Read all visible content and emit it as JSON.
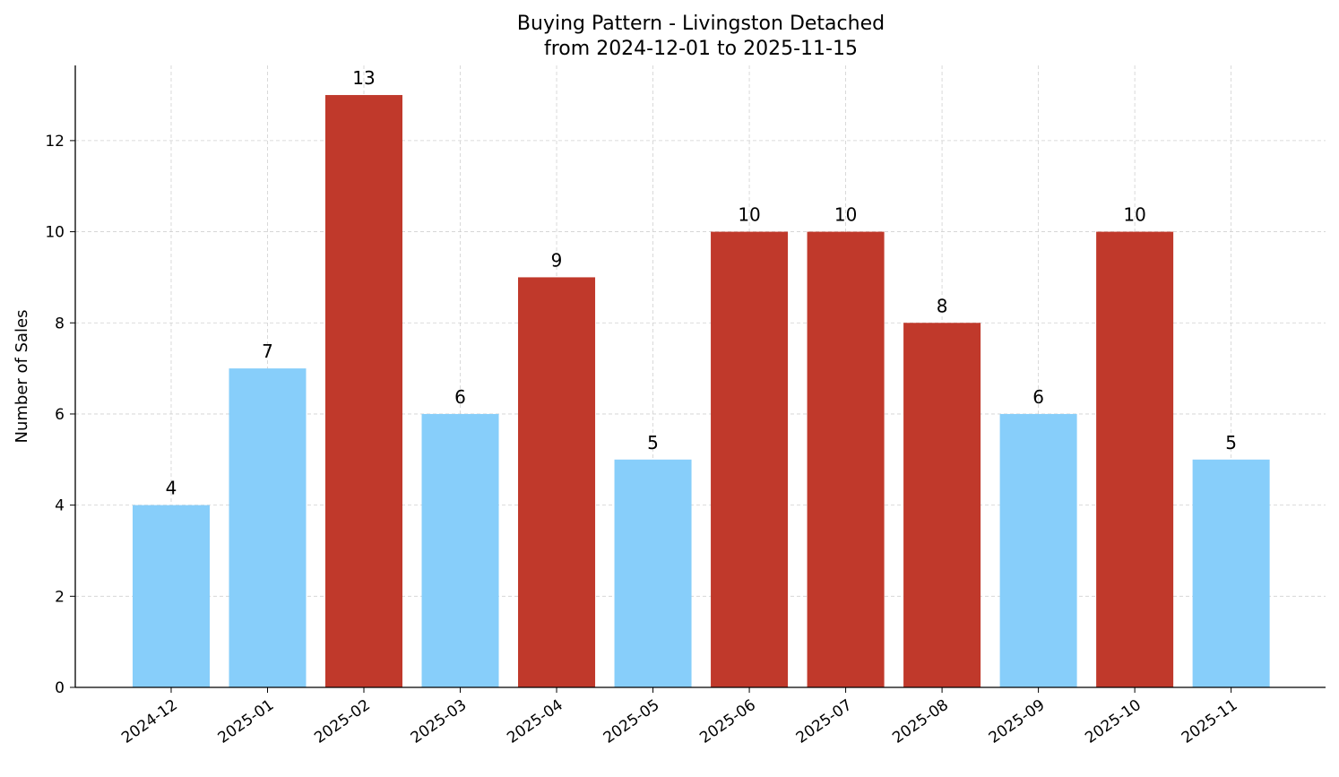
{
  "chart_data": {
    "type": "bar",
    "title": "Buying Pattern - Livingston Detached",
    "subtitle": "from 2024-12-01 to 2025-11-15",
    "xlabel": "",
    "ylabel": "Number of Sales",
    "categories": [
      "2024-12",
      "2025-01",
      "2025-02",
      "2025-03",
      "2025-04",
      "2025-05",
      "2025-06",
      "2025-07",
      "2025-08",
      "2025-09",
      "2025-10",
      "2025-11"
    ],
    "values": [
      4,
      7,
      13,
      6,
      9,
      5,
      10,
      10,
      8,
      6,
      10,
      5
    ],
    "bar_colors": [
      "#87CEFA",
      "#87CEFA",
      "#C0392B",
      "#87CEFA",
      "#C0392B",
      "#87CEFA",
      "#C0392B",
      "#C0392B",
      "#C0392B",
      "#87CEFA",
      "#C0392B",
      "#87CEFA"
    ],
    "ylim": [
      0,
      13.65
    ],
    "yticks": [
      0,
      2,
      4,
      6,
      8,
      10,
      12
    ],
    "grid": true,
    "data_labels": true
  }
}
